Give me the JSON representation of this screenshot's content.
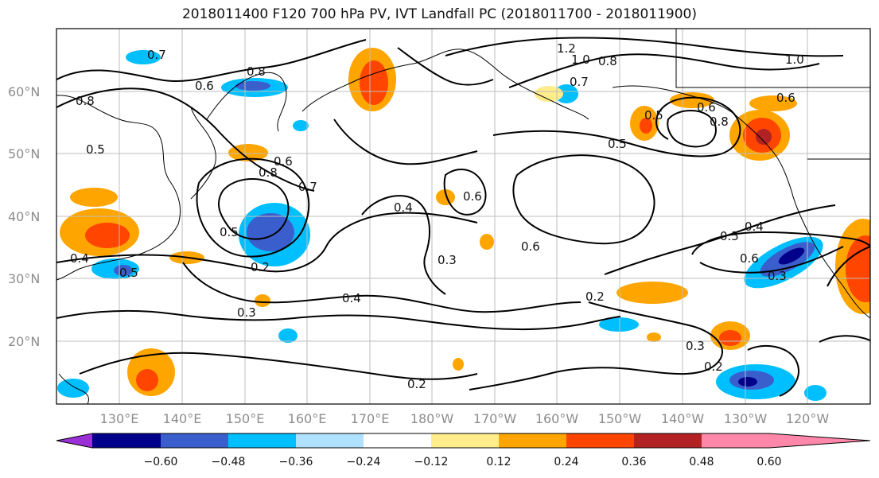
{
  "title": "2018011400 F120 700 hPa PV, IVT Landfall PC (2018011700 - 2018011900)",
  "latitude_labels": [
    "60°N",
    "50°N",
    "40°N",
    "30°N",
    "20°N"
  ],
  "longitude_labels": [
    "130°E",
    "140°E",
    "150°E",
    "160°E",
    "170°E",
    "180°W",
    "170°W",
    "160°W",
    "150°W",
    "140°W",
    "130°W",
    "120°W"
  ],
  "contour_labels": [
    "0.7",
    "0.8",
    "0.6",
    "0.8",
    "0.5",
    "0.6",
    "0.8",
    "0.7",
    "0.5",
    "0.4",
    "0.2",
    "0.3",
    "0.4",
    "0.4",
    "0.3",
    "0.6",
    "0.6",
    "1.2",
    "1.0",
    "0.8",
    "0.7",
    "0.5",
    "0.5",
    "0.6",
    "0.8",
    "0.6",
    "1.0",
    "0.5",
    "0.4",
    "0.6",
    "0.3",
    "0.2",
    "0.3",
    "0.2",
    "0.2",
    "0.5"
  ],
  "colorbar": {
    "ticks": [
      "−0.60",
      "−0.48",
      "−0.36",
      "−0.24",
      "−0.12",
      "0.12",
      "0.24",
      "0.36",
      "0.48",
      "0.60"
    ],
    "colors": [
      "#9b30d8",
      "#00008b",
      "#3a5fcd",
      "#00bfff",
      "#b0e2ff",
      "#ffffff",
      "#ffec8b",
      "#ffa500",
      "#ff4500",
      "#b22222",
      "#ff88aa"
    ]
  }
}
